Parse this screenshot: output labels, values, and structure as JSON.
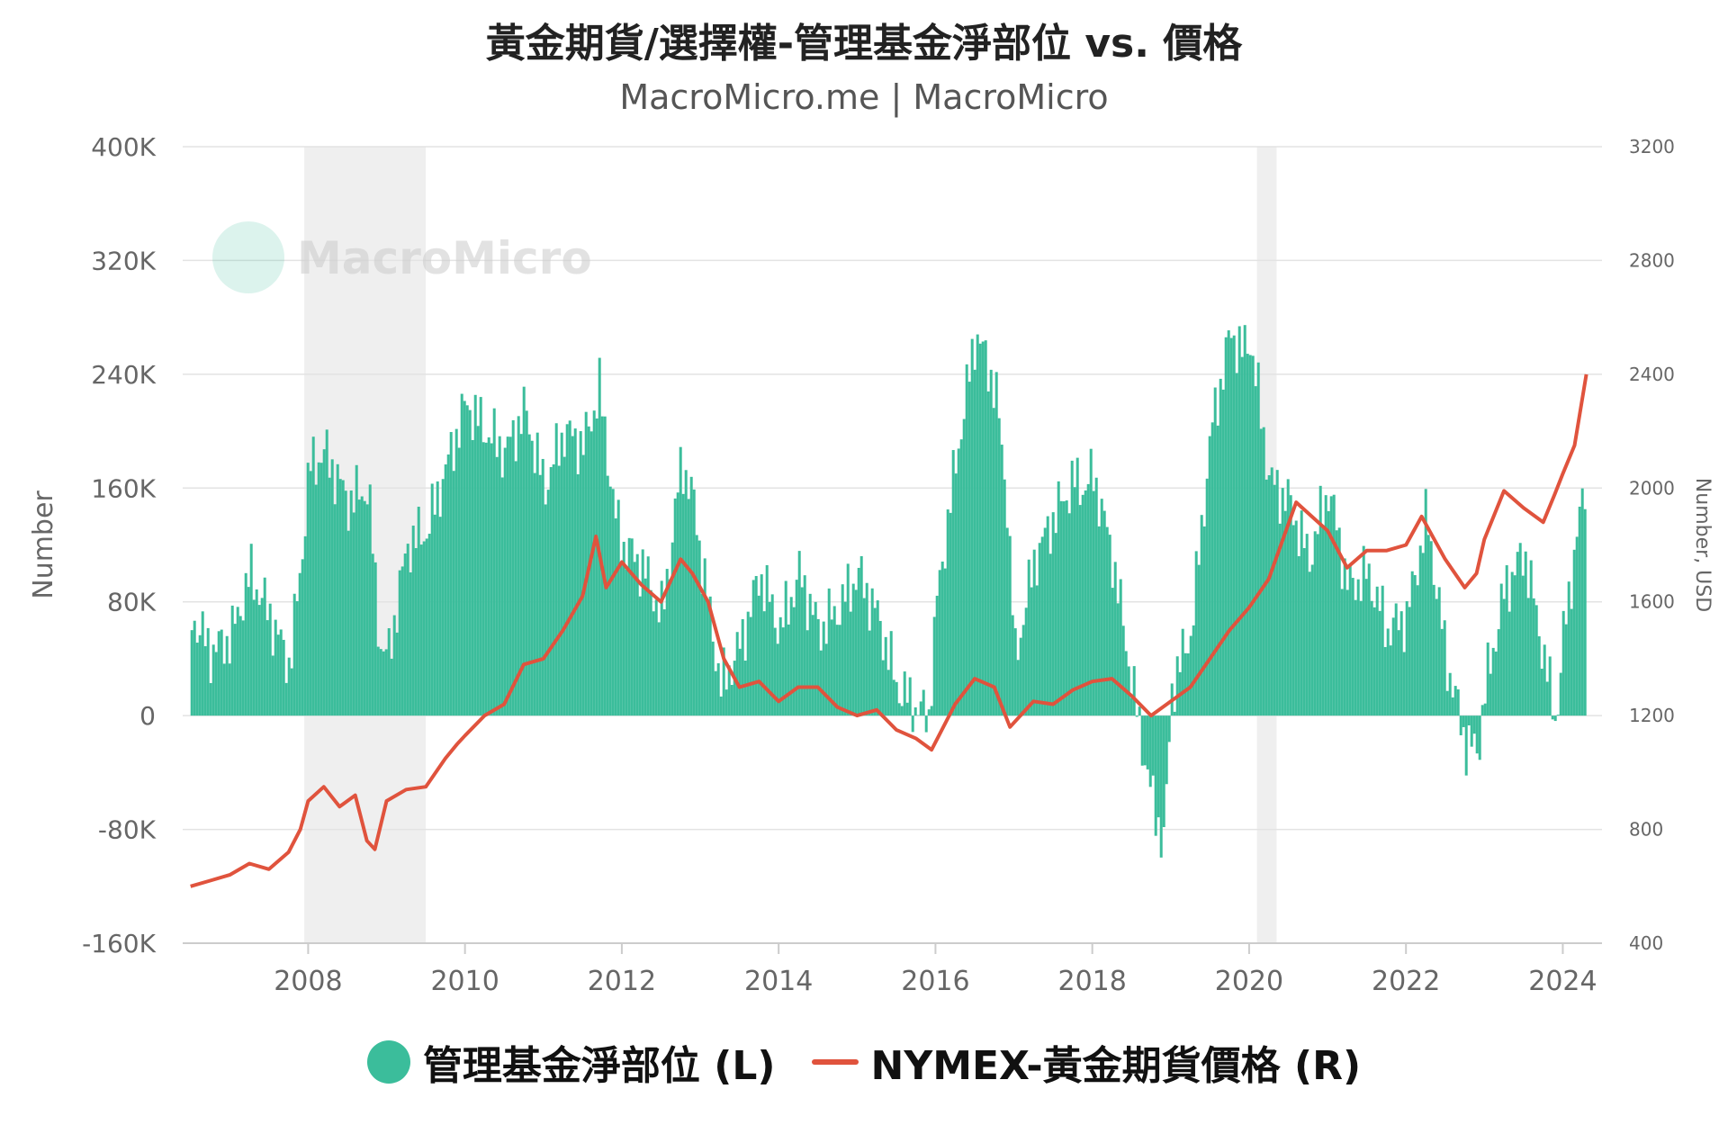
{
  "chart_data": {
    "type": "bar+line",
    "title": "黃金期貨/選擇權-管理基金淨部位 vs. 價格",
    "subtitle": "MacroMicro.me | MacroMicro",
    "watermark": "MacroMicro",
    "left_axis": {
      "label": "Number",
      "ylim": [
        -160000,
        400000
      ],
      "ticks": [
        -160000,
        -80000,
        0,
        80000,
        160000,
        240000,
        320000,
        400000
      ],
      "tick_labels": [
        "-160K",
        "-80K",
        "0",
        "80K",
        "160K",
        "240K",
        "320K",
        "400K"
      ]
    },
    "right_axis": {
      "label": "Number, USD",
      "ylim": [
        400,
        3200
      ],
      "ticks": [
        400,
        800,
        1200,
        1600,
        2000,
        2400,
        2800,
        3200
      ],
      "tick_labels": [
        "400",
        "800",
        "1200",
        "1600",
        "2000",
        "2400",
        "2800",
        "3200"
      ]
    },
    "x_axis": {
      "xlim": [
        2006.4,
        2024.5
      ],
      "ticks": [
        2008,
        2010,
        2012,
        2014,
        2016,
        2018,
        2020,
        2022,
        2024
      ],
      "tick_labels": [
        "2008",
        "2010",
        "2012",
        "2014",
        "2016",
        "2018",
        "2020",
        "2022",
        "2024"
      ]
    },
    "shaded_periods": [
      [
        2007.95,
        2009.5
      ],
      [
        2020.1,
        2020.35
      ]
    ],
    "grid": true,
    "legend_position": "bottom-center",
    "series": [
      {
        "name": "管理基金淨部位 (L)",
        "axis": "left",
        "type": "bar",
        "color": "#3bbd9b",
        "x": [
          2006.5,
          2006.75,
          2007.0,
          2007.25,
          2007.5,
          2007.75,
          2007.9,
          2008.0,
          2008.2,
          2008.5,
          2008.75,
          2008.9,
          2009.0,
          2009.25,
          2009.5,
          2009.75,
          2010.0,
          2010.25,
          2010.5,
          2010.75,
          2011.0,
          2011.25,
          2011.5,
          2011.7,
          2011.9,
          2012.0,
          2012.25,
          2012.5,
          2012.75,
          2012.9,
          2013.0,
          2013.25,
          2013.5,
          2013.75,
          2014.0,
          2014.25,
          2014.5,
          2014.75,
          2015.0,
          2015.25,
          2015.5,
          2015.75,
          2015.9,
          2016.0,
          2016.25,
          2016.5,
          2016.75,
          2016.9,
          2017.0,
          2017.25,
          2017.5,
          2017.75,
          2017.9,
          2018.0,
          2018.25,
          2018.5,
          2018.75,
          2018.9,
          2019.0,
          2019.25,
          2019.5,
          2019.75,
          2019.9,
          2020.0,
          2020.25,
          2020.5,
          2020.75,
          2021.0,
          2021.25,
          2021.5,
          2021.75,
          2022.0,
          2022.25,
          2022.5,
          2022.75,
          2022.9,
          2023.0,
          2023.25,
          2023.5,
          2023.75,
          2023.9,
          2024.0,
          2024.15,
          2024.3
        ],
        "values": [
          70000,
          45000,
          55000,
          100000,
          70000,
          35000,
          110000,
          175000,
          185000,
          150000,
          160000,
          50000,
          40000,
          120000,
          130000,
          175000,
          220000,
          200000,
          185000,
          215000,
          160000,
          200000,
          190000,
          230000,
          140000,
          120000,
          105000,
          70000,
          180000,
          150000,
          110000,
          20000,
          50000,
          100000,
          60000,
          100000,
          60000,
          75000,
          100000,
          70000,
          20000,
          5000,
          0,
          80000,
          180000,
          270000,
          230000,
          150000,
          40000,
          110000,
          140000,
          165000,
          160000,
          170000,
          110000,
          20000,
          -60000,
          -90000,
          20000,
          60000,
          200000,
          270000,
          255000,
          265000,
          165000,
          150000,
          110000,
          160000,
          90000,
          100000,
          60000,
          70000,
          140000,
          40000,
          -20000,
          -25000,
          20000,
          90000,
          115000,
          40000,
          -5000,
          60000,
          120000,
          175000
        ]
      },
      {
        "name": "NYMEX-黃金期貨價格 (R)",
        "axis": "right",
        "type": "line",
        "color": "#e0533d",
        "x": [
          2006.5,
          2006.75,
          2007.0,
          2007.25,
          2007.5,
          2007.75,
          2007.9,
          2008.0,
          2008.2,
          2008.4,
          2008.6,
          2008.75,
          2008.85,
          2009.0,
          2009.25,
          2009.5,
          2009.75,
          2009.9,
          2010.0,
          2010.25,
          2010.5,
          2010.75,
          2011.0,
          2011.25,
          2011.5,
          2011.67,
          2011.8,
          2012.0,
          2012.25,
          2012.5,
          2012.75,
          2012.9,
          2013.1,
          2013.3,
          2013.5,
          2013.75,
          2014.0,
          2014.25,
          2014.5,
          2014.75,
          2015.0,
          2015.25,
          2015.5,
          2015.75,
          2015.95,
          2016.25,
          2016.5,
          2016.75,
          2016.95,
          2017.25,
          2017.5,
          2017.75,
          2018.0,
          2018.25,
          2018.5,
          2018.75,
          2018.95,
          2019.25,
          2019.5,
          2019.75,
          2020.0,
          2020.25,
          2020.6,
          2020.8,
          2021.0,
          2021.25,
          2021.5,
          2021.75,
          2022.0,
          2022.2,
          2022.5,
          2022.75,
          2022.9,
          2023.0,
          2023.25,
          2023.5,
          2023.75,
          2023.9,
          2024.0,
          2024.15,
          2024.3
        ],
        "values": [
          600,
          620,
          640,
          680,
          660,
          720,
          800,
          900,
          950,
          880,
          920,
          760,
          730,
          900,
          940,
          950,
          1050,
          1100,
          1130,
          1200,
          1240,
          1380,
          1400,
          1500,
          1620,
          1830,
          1650,
          1740,
          1660,
          1600,
          1750,
          1700,
          1600,
          1400,
          1300,
          1320,
          1250,
          1300,
          1300,
          1230,
          1200,
          1220,
          1150,
          1120,
          1080,
          1240,
          1330,
          1300,
          1160,
          1250,
          1240,
          1290,
          1320,
          1330,
          1270,
          1200,
          1240,
          1300,
          1400,
          1500,
          1580,
          1680,
          1950,
          1900,
          1850,
          1720,
          1780,
          1780,
          1800,
          1900,
          1750,
          1650,
          1700,
          1820,
          1990,
          1930,
          1880,
          1980,
          2050,
          2150,
          2400
        ]
      }
    ]
  }
}
